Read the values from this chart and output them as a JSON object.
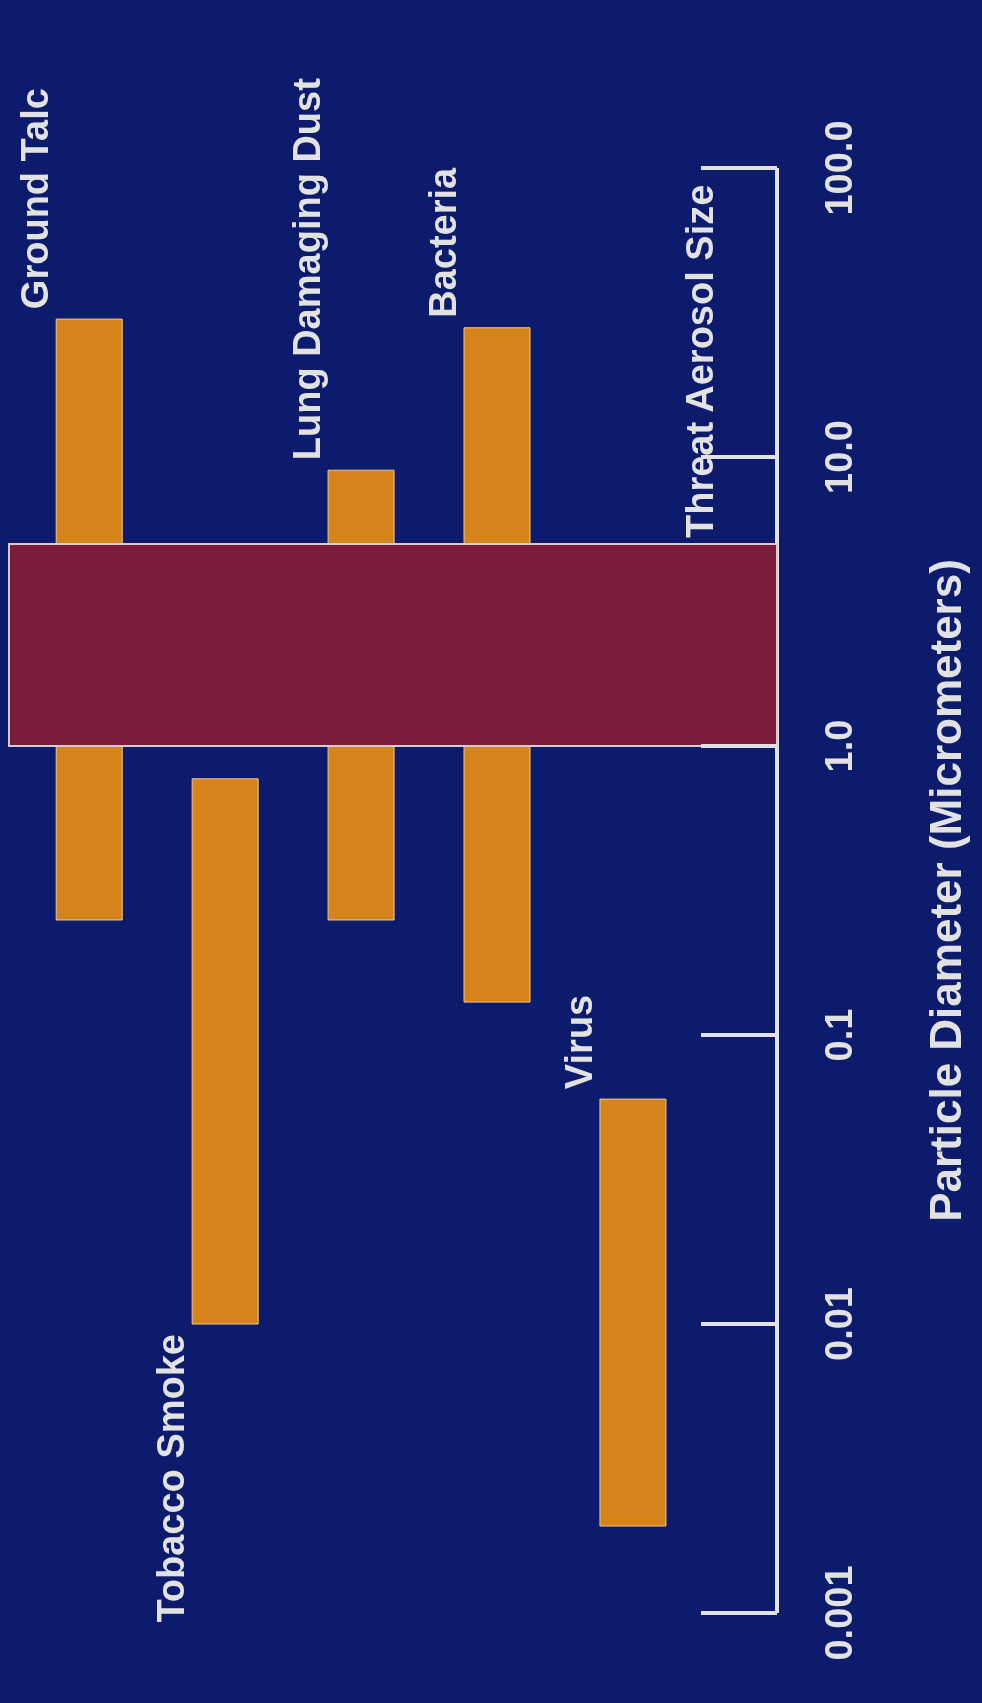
{
  "chart_data": {
    "type": "bar",
    "ylabel": "Particle Diameter (Micrometers)",
    "categories": [
      "Ground Talc",
      "Tobacco Smoke",
      "Lung Damaging Dust",
      "Bacteria",
      "Virus"
    ],
    "base": [
      0.25,
      0.01,
      0.25,
      0.13,
      0.002
    ],
    "values": [
      29.75,
      0.76,
      8.75,
      27.87,
      0.058
    ],
    "color": "#d5841c",
    "log": true,
    "ylim": [
      0.001,
      100
    ],
    "yticks": [
      0.001,
      0.01,
      0.1,
      {
        "value": 1,
        "label": "1.0"
      },
      {
        "value": 10,
        "label": "10.0"
      },
      {
        "value": 100,
        "label": "100.0"
      }
    ],
    "bands": [
      {
        "axis": "y",
        "from": 1,
        "to": 5,
        "label": "Threat Aerosol Size",
        "color": "#7b1c3a"
      }
    ]
  }
}
